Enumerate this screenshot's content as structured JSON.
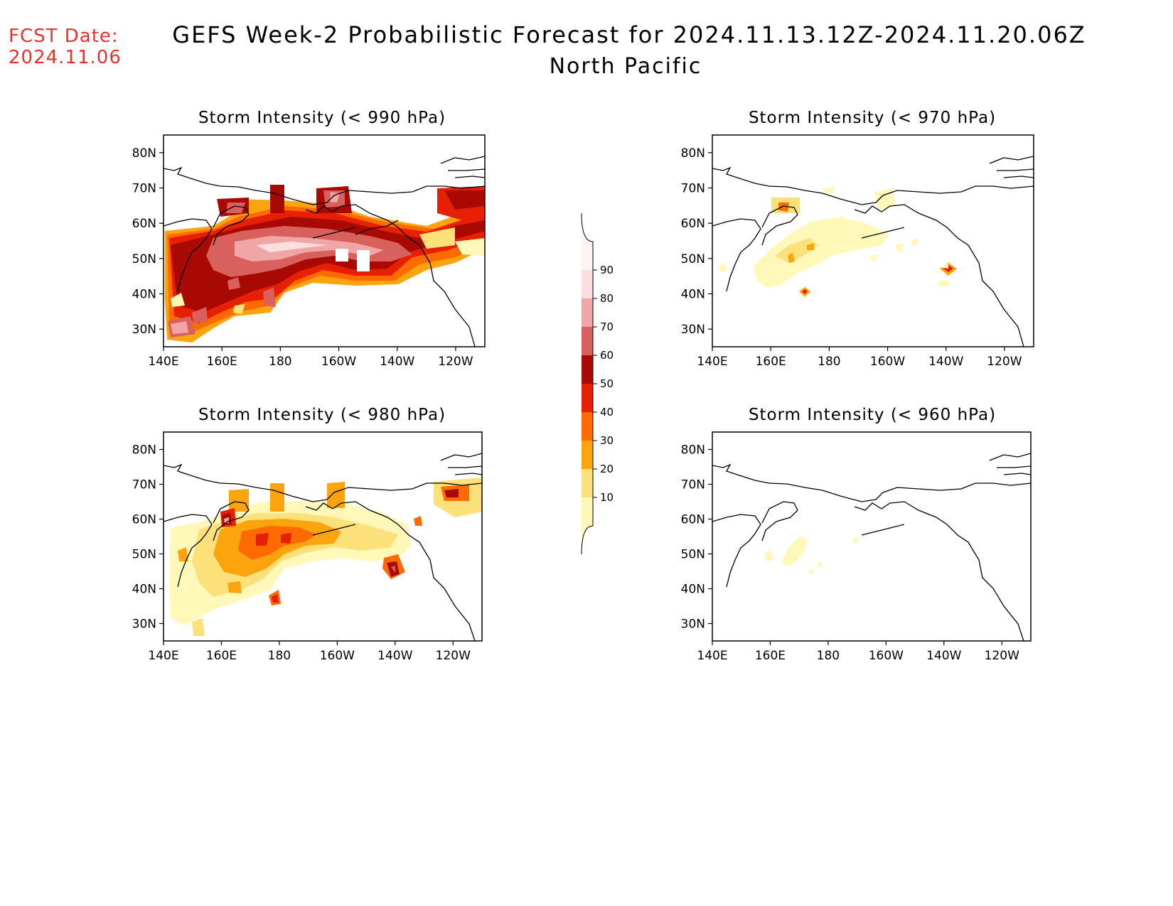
{
  "header": {
    "fcst_label": "FCST Date:",
    "fcst_date": "2024.11.06",
    "title": "GEFS Week-2 Probabilistic Forecast for 2024.11.13.12Z-2024.11.20.06Z",
    "subtitle": "North Pacific"
  },
  "axes": {
    "lon_labels": [
      "140E",
      "160E",
      "180",
      "160W",
      "140W",
      "120W"
    ],
    "lat_labels": [
      "80N",
      "70N",
      "60N",
      "50N",
      "40N",
      "30N"
    ]
  },
  "colorbar": {
    "levels": [
      "10",
      "20",
      "30",
      "40",
      "50",
      "60",
      "70",
      "80",
      "90"
    ],
    "colors": [
      "#fff8b8",
      "#fce07a",
      "#fba40e",
      "#fc6a00",
      "#e71f05",
      "#a90903",
      "#d8615e",
      "#f0a6a6",
      "#fcdede",
      "#fff3f3"
    ]
  },
  "panels": [
    {
      "id": "p990",
      "title": "Storm Intensity (< 990 hPa)"
    },
    {
      "id": "p970",
      "title": "Storm Intensity (< 970 hPa)"
    },
    {
      "id": "p980",
      "title": "Storm Intensity (< 980 hPa)"
    },
    {
      "id": "p960",
      "title": "Storm Intensity (< 960 hPa)"
    }
  ]
}
